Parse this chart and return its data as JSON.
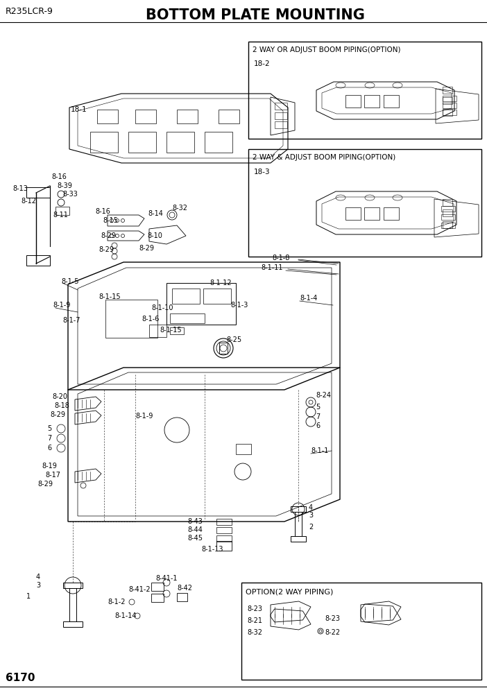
{
  "title": "BOTTOM PLATE MOUNTING",
  "model": "R235LCR-9",
  "page": "6170",
  "bg_color": "#ffffff",
  "lc": "#000000",
  "title_fontsize": 15,
  "model_fontsize": 9,
  "label_fontsize": 7.5,
  "page_fontsize": 11
}
